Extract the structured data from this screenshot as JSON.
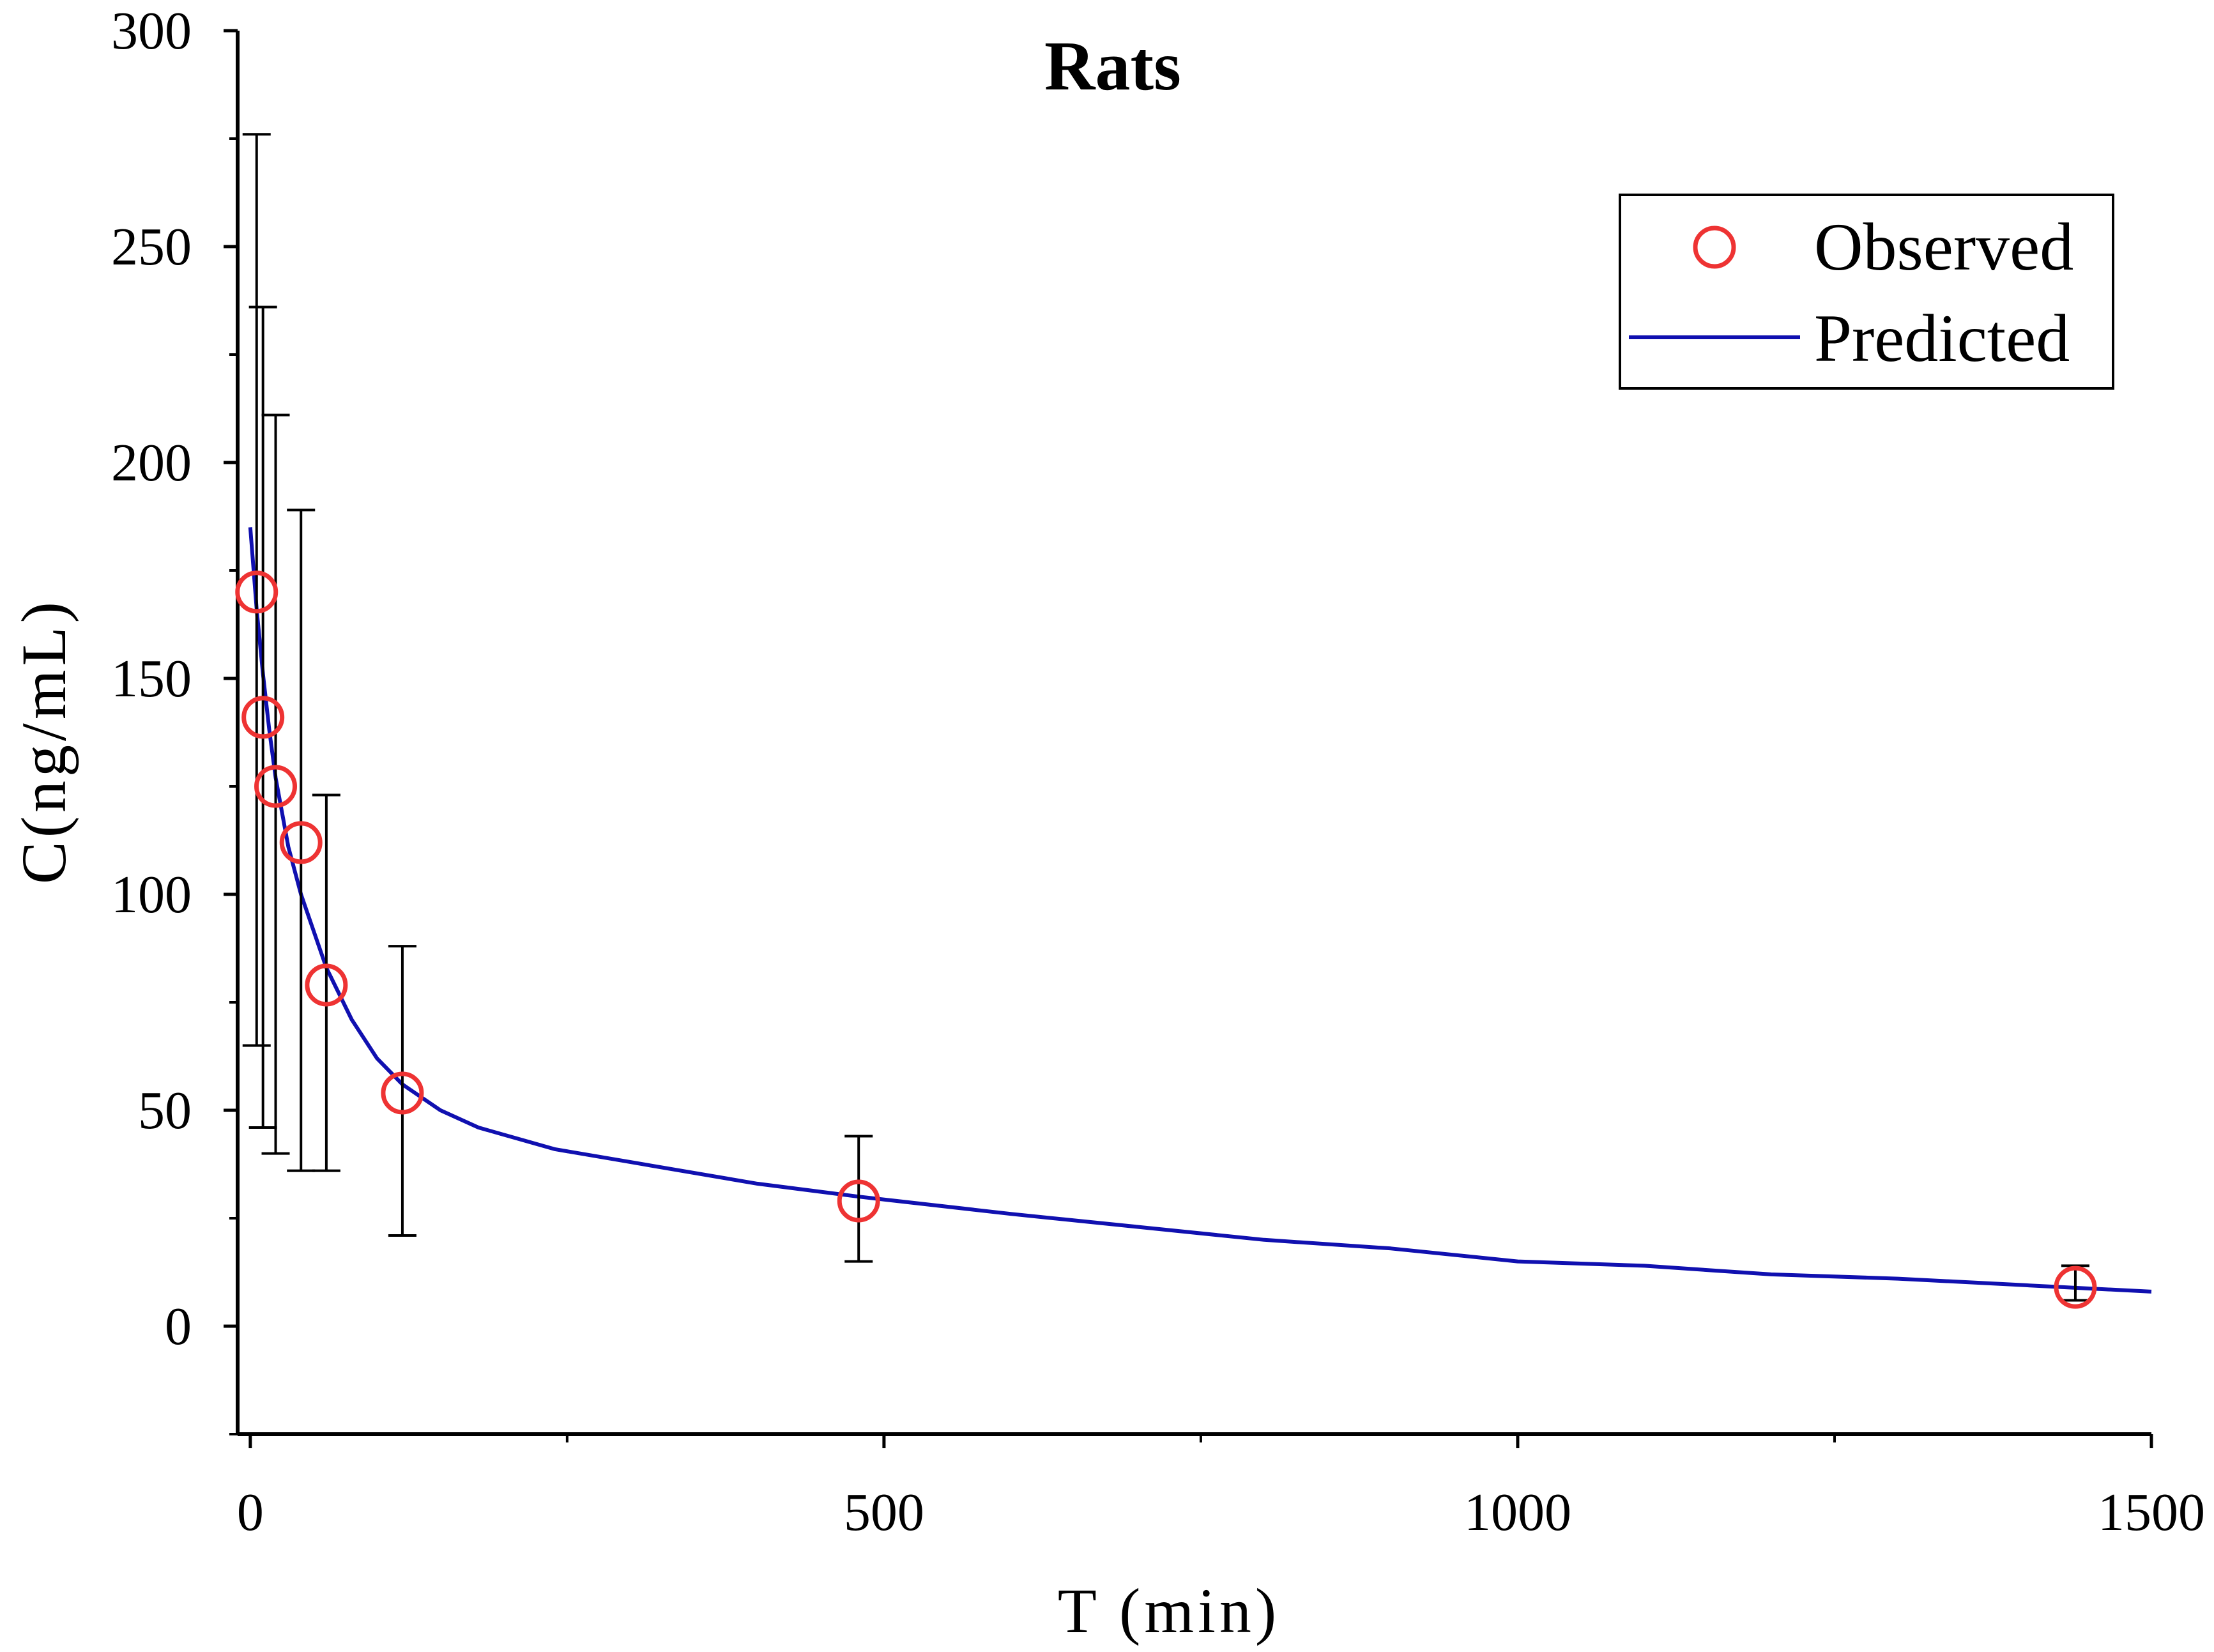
{
  "chart_data": {
    "type": "scatter",
    "title": "Rats",
    "xlabel": "T (min)",
    "ylabel": "C(ng/mL)",
    "xlim": [
      -10,
      1500
    ],
    "ylim": [
      -25,
      300
    ],
    "x_ticks": [
      0,
      500,
      1000,
      1500
    ],
    "x_tick_labels": [
      "0",
      "500",
      "1000",
      "1500"
    ],
    "x_minor_ticks": [
      250,
      750,
      1250
    ],
    "y_ticks": [
      0,
      50,
      100,
      150,
      200,
      250,
      300
    ],
    "y_tick_labels": [
      "0",
      "50",
      "100",
      "150",
      "200",
      "250",
      "300"
    ],
    "y_minor_ticks": [
      -25,
      25,
      75,
      125,
      175,
      225,
      275
    ],
    "grid": false,
    "legend_position": "top-right",
    "series": [
      {
        "name": "Observed",
        "kind": "scatter",
        "marker": "open-circle",
        "color": "#ee3333",
        "x": [
          5,
          10,
          20,
          40,
          60,
          120,
          480,
          1440
        ],
        "y": [
          170,
          141,
          125,
          112,
          79,
          54,
          29,
          9
        ],
        "err_low": [
          65,
          46,
          40,
          36,
          36,
          21,
          15,
          6
        ],
        "err_high": [
          276,
          236,
          211,
          189,
          123,
          88,
          44,
          14
        ]
      },
      {
        "name": "Predicted",
        "kind": "line",
        "color": "#1010b0",
        "x": [
          0,
          5,
          10,
          15,
          20,
          30,
          40,
          60,
          80,
          100,
          120,
          150,
          180,
          240,
          300,
          400,
          480,
          600,
          700,
          800,
          900,
          1000,
          1100,
          1200,
          1300,
          1400,
          1500
        ],
        "y": [
          185,
          166,
          151,
          138,
          127,
          111,
          100,
          83,
          71,
          62,
          56,
          50,
          46,
          41,
          38,
          33,
          30,
          26,
          23,
          20,
          18,
          15,
          14,
          12,
          11,
          9.5,
          8
        ]
      }
    ]
  }
}
